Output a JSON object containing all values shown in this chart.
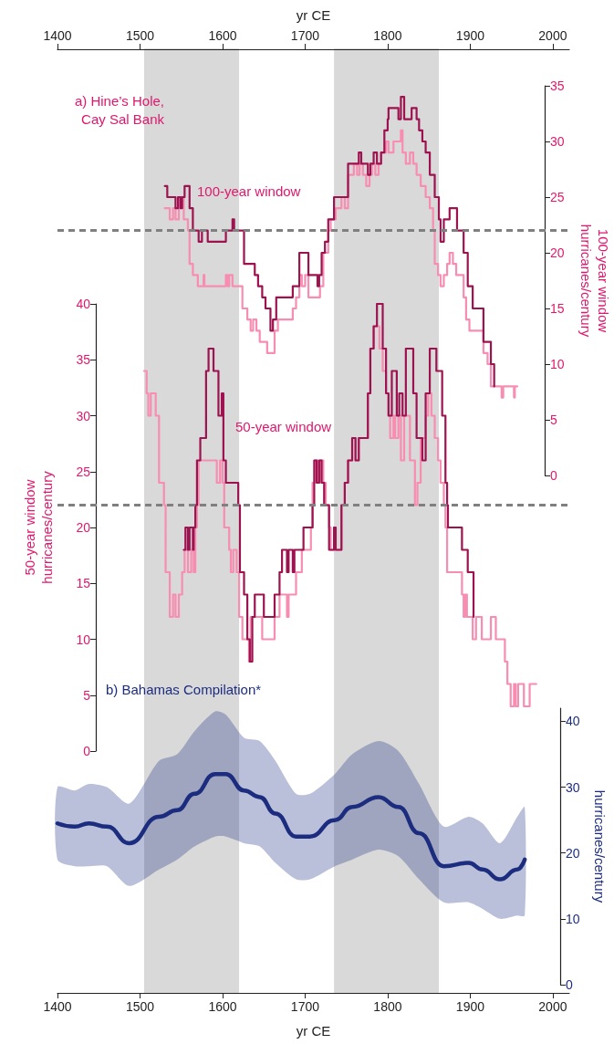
{
  "chart_data": [
    {
      "type": "step",
      "annotations": [
        "a) Hine’s Hole,\nCay Sal Bank",
        "100-year window"
      ],
      "xlabel": "yr CE",
      "xlim": [
        1400,
        2020
      ],
      "xticks": [
        1400,
        1500,
        1600,
        1700,
        1800,
        1900,
        2000
      ],
      "ylabel": "100-year window\nhurricanes/century",
      "ylim": [
        0,
        35
      ],
      "yticks": [
        0,
        5,
        10,
        15,
        20,
        25,
        30,
        35
      ],
      "grid": false,
      "bands": [
        {
          "axis": "x",
          "from": 1505,
          "to": 1620,
          "color": "#d9d9d9"
        },
        {
          "axis": "x",
          "from": 1735,
          "to": 1862,
          "color": "#d9d9d9"
        }
      ],
      "ref_lines": [
        {
          "axis": "y",
          "value": 22,
          "color": "#808080",
          "line_style": "dashed"
        }
      ],
      "series": [
        {
          "color": "#f78db0",
          "x": [
            1530,
            1534,
            1536,
            1540,
            1543,
            1547,
            1553,
            1558,
            1560,
            1564,
            1570,
            1575,
            1577,
            1578,
            1602,
            1604,
            1606,
            1608,
            1612,
            1621,
            1624,
            1630,
            1634,
            1637,
            1641,
            1645,
            1650,
            1654,
            1658,
            1663,
            1667,
            1682,
            1685,
            1689,
            1693,
            1696,
            1700,
            1704,
            1715,
            1718,
            1722,
            1728,
            1731,
            1737,
            1741,
            1744,
            1748,
            1752,
            1757,
            1759,
            1763,
            1766,
            1770,
            1774,
            1778,
            1781,
            1785,
            1789,
            1792,
            1798,
            1801,
            1807,
            1813,
            1816,
            1818,
            1822,
            1825,
            1827,
            1831,
            1835,
            1840,
            1846,
            1851,
            1855,
            1857,
            1861,
            1864,
            1868,
            1872,
            1875,
            1879,
            1883,
            1888,
            1892,
            1895,
            1899,
            1910,
            1916,
            1921,
            1925,
            1936,
            1938,
            1940,
            1951,
            1953,
            1954,
            1957
          ],
          "values": [
            24,
            24,
            23,
            24,
            23,
            25,
            23,
            22,
            19,
            18,
            17,
            17,
            18,
            17,
            17,
            18,
            17,
            18,
            17,
            17,
            15,
            14,
            13,
            14,
            13,
            12,
            12,
            11,
            11,
            13,
            14,
            14,
            15,
            16,
            18,
            17,
            18,
            16,
            16,
            17,
            20,
            22,
            23,
            24,
            24,
            25,
            24,
            27,
            27,
            28,
            27,
            28,
            27,
            26,
            27,
            28,
            27,
            28,
            29,
            30,
            29,
            30,
            30,
            31,
            29,
            28,
            28,
            29,
            28,
            27,
            26,
            25,
            24,
            22,
            19,
            18,
            17,
            18,
            19,
            20,
            19,
            18,
            18,
            16,
            14,
            13,
            13,
            11,
            10,
            8,
            8,
            7,
            8,
            8,
            7,
            8,
            8
          ]
        },
        {
          "color": "#9c1350",
          "x": [
            1530,
            1533,
            1542,
            1543,
            1546,
            1549,
            1551,
            1554,
            1558,
            1560,
            1564,
            1569,
            1571,
            1575,
            1580,
            1582,
            1602,
            1604,
            1608,
            1612,
            1614,
            1623,
            1626,
            1634,
            1639,
            1643,
            1648,
            1652,
            1658,
            1661,
            1665,
            1682,
            1685,
            1693,
            1700,
            1704,
            1713,
            1715,
            1717,
            1720,
            1724,
            1728,
            1735,
            1748,
            1752,
            1763,
            1765,
            1768,
            1774,
            1776,
            1779,
            1783,
            1787,
            1792,
            1796,
            1800,
            1801,
            1809,
            1813,
            1816,
            1820,
            1825,
            1829,
            1835,
            1838,
            1842,
            1846,
            1851,
            1857,
            1862,
            1864,
            1868,
            1873,
            1875,
            1881,
            1884,
            1888,
            1892,
            1897,
            1903,
            1912,
            1916,
            1921,
            1925,
            1929
          ],
          "values": [
            26,
            25,
            25,
            24,
            25,
            24,
            25,
            26,
            26,
            24,
            22,
            22,
            21,
            22,
            22,
            21,
            21,
            22,
            22,
            23,
            22,
            22,
            19,
            19,
            18,
            17,
            16,
            15,
            13,
            14,
            16,
            16,
            17,
            20,
            20,
            18,
            18,
            17,
            18,
            20,
            21,
            23,
            25,
            25,
            28,
            28,
            29,
            28,
            28,
            27,
            28,
            29,
            28,
            29,
            31,
            32,
            33,
            33,
            32,
            34,
            32,
            32,
            33,
            32,
            31,
            30,
            29,
            27,
            25,
            23,
            21,
            23,
            23,
            24,
            24,
            22,
            22,
            20,
            17,
            15,
            15,
            12,
            12,
            10,
            8
          ]
        }
      ]
    },
    {
      "type": "step",
      "annotations": [
        "50-year window"
      ],
      "xlim": [
        1400,
        2020
      ],
      "tick_labels": "y",
      "ylabel": "50-year window\nhurricanes/century",
      "ylim": [
        0,
        40
      ],
      "yticks": [
        0,
        5,
        10,
        15,
        20,
        25,
        30,
        35,
        40
      ],
      "grid": false,
      "ref_lines": [
        {
          "axis": "y",
          "value": 22,
          "color": "#808080",
          "line_style": "dashed"
        }
      ],
      "series": [
        {
          "color": "#f78db0",
          "x": [
            1505,
            1508,
            1510,
            1513,
            1518,
            1519,
            1523,
            1527,
            1529,
            1531,
            1536,
            1540,
            1543,
            1547,
            1551,
            1554,
            1558,
            1562,
            1565,
            1567,
            1569,
            1571,
            1590,
            1593,
            1597,
            1600,
            1602,
            1608,
            1610,
            1613,
            1617,
            1620,
            1624,
            1632,
            1634,
            1648,
            1663,
            1669,
            1678,
            1680,
            1689,
            1696,
            1707,
            1709,
            1712,
            1715,
            1718,
            1722,
            1725,
            1729,
            1731,
            1735,
            1737,
            1744,
            1748,
            1752,
            1757,
            1761,
            1765,
            1776,
            1779,
            1783,
            1790,
            1794,
            1798,
            1801,
            1803,
            1807,
            1809,
            1813,
            1816,
            1820,
            1827,
            1833,
            1836,
            1840,
            1846,
            1849,
            1853,
            1857,
            1861,
            1864,
            1868,
            1870,
            1872,
            1890,
            1892,
            1894,
            1896,
            1903,
            1907,
            1914,
            1925,
            1931,
            1942,
            1945,
            1949,
            1953,
            1955,
            1958,
            1965,
            1972,
            1980
          ],
          "values": [
            34,
            32,
            30,
            32,
            32,
            30,
            24,
            24,
            22,
            16,
            12,
            14,
            12,
            14,
            16,
            18,
            16,
            18,
            16,
            20,
            22,
            26,
            26,
            24,
            26,
            24,
            20,
            18,
            16,
            18,
            16,
            12,
            10,
            8,
            12,
            10,
            12,
            14,
            12,
            14,
            16,
            18,
            20,
            24,
            26,
            24,
            26,
            24,
            22,
            20,
            18,
            20,
            18,
            22,
            24,
            26,
            28,
            26,
            28,
            32,
            36,
            38,
            36,
            34,
            32,
            30,
            28,
            30,
            28,
            30,
            26,
            30,
            26,
            22,
            24,
            28,
            30,
            32,
            30,
            28,
            26,
            24,
            22,
            20,
            16,
            14,
            12,
            14,
            12,
            10,
            12,
            10,
            12,
            10,
            8,
            6,
            4,
            6,
            4,
            6,
            4,
            6,
            6
          ]
        },
        {
          "color": "#9c1350",
          "x": [
            1553,
            1555,
            1558,
            1560,
            1564,
            1565,
            1567,
            1569,
            1573,
            1580,
            1583,
            1589,
            1595,
            1599,
            1601,
            1604,
            1619,
            1621,
            1626,
            1630,
            1633,
            1636,
            1639,
            1650,
            1663,
            1669,
            1672,
            1678,
            1680,
            1685,
            1687,
            1698,
            1709,
            1711,
            1714,
            1717,
            1720,
            1723,
            1729,
            1735,
            1737,
            1744,
            1748,
            1752,
            1757,
            1761,
            1765,
            1776,
            1779,
            1783,
            1787,
            1794,
            1798,
            1801,
            1805,
            1811,
            1814,
            1818,
            1822,
            1831,
            1835,
            1842,
            1846,
            1851,
            1859,
            1866,
            1870,
            1872,
            1873,
            1890,
            1897,
            1904
          ],
          "values": [
            18,
            20,
            18,
            20,
            18,
            20,
            22,
            26,
            28,
            34,
            36,
            34,
            30,
            32,
            26,
            24,
            22,
            16,
            14,
            10,
            8,
            12,
            14,
            12,
            14,
            16,
            18,
            16,
            18,
            16,
            18,
            20,
            22,
            26,
            24,
            26,
            24,
            22,
            18,
            20,
            18,
            22,
            24,
            26,
            28,
            26,
            28,
            32,
            36,
            38,
            40,
            36,
            32,
            30,
            34,
            30,
            32,
            30,
            36,
            32,
            28,
            26,
            32,
            36,
            34,
            30,
            24,
            22,
            20,
            18,
            16,
            12
          ]
        }
      ]
    },
    {
      "type": "line",
      "annotations": [
        "b) Bahamas Compilation*"
      ],
      "xlabel": "yr CE",
      "xlim": [
        1400,
        2020
      ],
      "xticks": [
        1400,
        1500,
        1600,
        1700,
        1800,
        1900,
        2000
      ],
      "ylabel": "hurricanes/century",
      "ylim": [
        0,
        42
      ],
      "yticks": [
        0,
        10,
        20,
        30,
        40
      ],
      "grid": false,
      "series": [
        {
          "color": "#1c2d80",
          "x": [
            1400,
            1421,
            1438,
            1460,
            1487,
            1523,
            1545,
            1566,
            1591,
            1604,
            1626,
            1645,
            1664,
            1689,
            1706,
            1736,
            1757,
            1789,
            1813,
            1838,
            1868,
            1898,
            1915,
            1936,
            1957,
            1966
          ],
          "values": [
            24.5,
            24,
            24.5,
            24,
            21.5,
            25.5,
            26.5,
            29,
            32,
            32,
            29.5,
            28.5,
            26,
            22.5,
            22.5,
            25,
            27,
            28.5,
            27,
            23,
            18,
            18.5,
            17.5,
            16,
            17.5,
            19
          ],
          "upper": [
            30,
            29.5,
            30.5,
            30,
            27.5,
            34,
            35,
            38.5,
            41.5,
            41,
            37.5,
            37,
            34,
            29,
            29,
            32,
            35,
            37,
            35.5,
            30.5,
            24,
            25.5,
            24.5,
            21.5,
            25.5,
            27
          ],
          "lower": [
            19,
            18,
            18,
            18,
            15,
            17.5,
            19,
            21,
            22.5,
            22.5,
            21.5,
            21,
            18.5,
            16,
            16,
            18,
            19,
            20.5,
            19.5,
            16,
            12.5,
            12.5,
            11.5,
            10,
            10.5,
            10.5
          ]
        }
      ]
    }
  ]
}
